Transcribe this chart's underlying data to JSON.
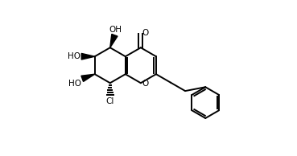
{
  "bg_color": "#ffffff",
  "line_color": "#000000",
  "bond_lw": 1.4,
  "figsize": [
    3.69,
    1.94
  ],
  "dpi": 100,
  "xlim": [
    0.0,
    1.0
  ],
  "ylim": [
    0.0,
    1.0
  ]
}
